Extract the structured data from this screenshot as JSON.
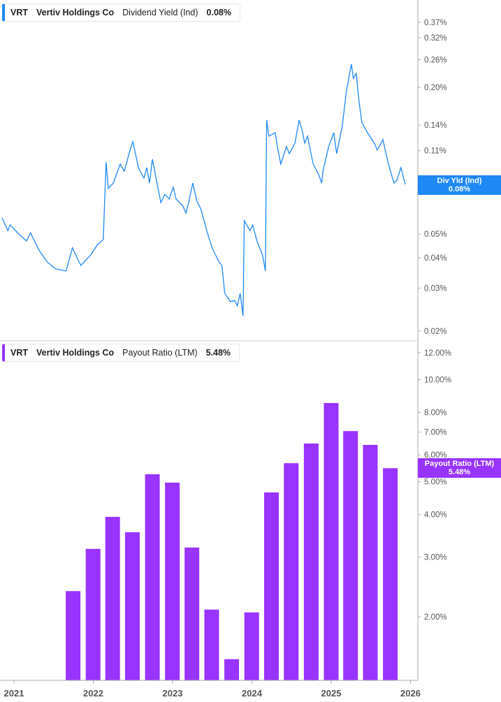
{
  "top_panel": {
    "legend": {
      "ticker": "VRT",
      "company": "Vertiv Holdings Co",
      "metric": "Dividend Yield (Ind)",
      "value": "0.08%"
    },
    "flag": {
      "label": "Div Yld (Ind)",
      "value": "0.08%"
    }
  },
  "bottom_panel": {
    "legend": {
      "ticker": "VRT",
      "company": "Vertiv Holdings Co",
      "metric": "Payout Ratio (LTM)",
      "value": "5.48%"
    },
    "flag": {
      "label": "Payout Ratio (LTM)",
      "value": "5.48%"
    }
  },
  "colors": {
    "line": "#1e88f5",
    "bar": "#9933ff",
    "axis": "#aaaaaa"
  },
  "chart_data": [
    {
      "type": "line",
      "series": [
        {
          "name": "Dividend Yield (Ind)",
          "unit": "%",
          "points": [
            [
              "2020-11-06",
              0.0583
            ],
            [
              "2020-12-03",
              0.0517
            ],
            [
              "2020-12-13",
              0.0545
            ],
            [
              "2021-01-20",
              0.0504
            ],
            [
              "2021-02-28",
              0.0469
            ],
            [
              "2021-03-18",
              0.0507
            ],
            [
              "2021-04-26",
              0.043
            ],
            [
              "2021-06-04",
              0.0384
            ],
            [
              "2021-07-12",
              0.036
            ],
            [
              "2021-08-29",
              0.0353
            ],
            [
              "2021-09-27",
              0.0439
            ],
            [
              "2021-10-23",
              0.0392
            ],
            [
              "2021-11-05",
              0.0372
            ],
            [
              "2021-12-20",
              0.0411
            ],
            [
              "2022-01-21",
              0.0453
            ],
            [
              "2022-02-16",
              0.0475
            ],
            [
              "2022-03-01",
              0.0988
            ],
            [
              "2022-03-11",
              0.0769
            ],
            [
              "2022-04-03",
              0.081
            ],
            [
              "2022-05-05",
              0.0969
            ],
            [
              "2022-05-24",
              0.0907
            ],
            [
              "2022-06-19",
              0.1106
            ],
            [
              "2022-07-02",
              0.1197
            ],
            [
              "2022-07-28",
              0.0937
            ],
            [
              "2022-08-22",
              0.0849
            ],
            [
              "2022-09-04",
              0.0937
            ],
            [
              "2022-09-17",
              0.081
            ],
            [
              "2022-09-30",
              0.1015
            ],
            [
              "2022-10-26",
              0.0769
            ],
            [
              "2022-11-08",
              0.0674
            ],
            [
              "2022-11-27",
              0.0729
            ],
            [
              "2022-12-16",
              0.0697
            ],
            [
              "2023-01-04",
              0.0779
            ],
            [
              "2023-01-17",
              0.0697
            ],
            [
              "2023-02-18",
              0.0652
            ],
            [
              "2023-03-03",
              0.061
            ],
            [
              "2023-03-16",
              0.0674
            ],
            [
              "2023-04-04",
              0.081
            ],
            [
              "2023-04-23",
              0.0683
            ],
            [
              "2023-05-12",
              0.0631
            ],
            [
              "2023-06-07",
              0.0517
            ],
            [
              "2023-07-02",
              0.0439
            ],
            [
              "2023-08-03",
              0.0384
            ],
            [
              "2023-08-16",
              0.0372
            ],
            [
              "2023-08-29",
              0.0286
            ],
            [
              "2023-09-24",
              0.0264
            ],
            [
              "2023-10-13",
              0.0267
            ],
            [
              "2023-10-26",
              0.0254
            ],
            [
              "2023-11-08",
              0.0286
            ],
            [
              "2023-11-21",
              0.0231
            ],
            [
              "2023-11-27",
              0.0568
            ],
            [
              "2023-12-23",
              0.0517
            ],
            [
              "2024-01-05",
              0.0545
            ],
            [
              "2024-01-24",
              0.0469
            ],
            [
              "2024-02-19",
              0.0411
            ],
            [
              "2024-03-03",
              0.0353
            ],
            [
              "2024-03-09",
              0.1468
            ],
            [
              "2024-03-19",
              0.1262
            ],
            [
              "2024-04-17",
              0.1304
            ],
            [
              "2024-04-30",
              0.1106
            ],
            [
              "2024-05-13",
              0.0969
            ],
            [
              "2024-06-08",
              0.1143
            ],
            [
              "2024-06-21",
              0.107
            ],
            [
              "2024-07-17",
              0.1181
            ],
            [
              "2024-08-05",
              0.1468
            ],
            [
              "2024-08-18",
              0.1348
            ],
            [
              "2024-08-31",
              0.1181
            ],
            [
              "2024-09-13",
              0.1262
            ],
            [
              "2024-09-26",
              0.1106
            ],
            [
              "2024-10-09",
              0.0969
            ],
            [
              "2024-11-04",
              0.0877
            ],
            [
              "2024-11-17",
              0.081
            ],
            [
              "2024-11-23",
              0.0907
            ],
            [
              "2024-12-19",
              0.1143
            ],
            [
              "2025-01-13",
              0.1304
            ],
            [
              "2025-01-26",
              0.107
            ],
            [
              "2025-02-21",
              0.1393
            ],
            [
              "2025-03-12",
              0.1937
            ],
            [
              "2025-04-04",
              0.2489
            ],
            [
              "2025-04-13",
              0.2181
            ],
            [
              "2025-04-26",
              0.2285
            ],
            [
              "2025-05-09",
              0.1755
            ],
            [
              "2025-05-22",
              0.1439
            ],
            [
              "2025-06-17",
              0.1304
            ],
            [
              "2025-07-19",
              0.1181
            ],
            [
              "2025-08-01",
              0.1106
            ],
            [
              "2025-08-27",
              0.1221
            ],
            [
              "2025-09-21",
              0.0969
            ],
            [
              "2025-10-17",
              0.081
            ],
            [
              "2025-10-30",
              0.0832
            ],
            [
              "2025-11-18",
              0.0937
            ],
            [
              "2025-12-08",
              0.08
            ]
          ]
        }
      ],
      "y_scale": "log",
      "ylim": [
        0.02,
        0.37
      ],
      "y_ticks": [
        "0.37%",
        "0.32%",
        "0.26%",
        "0.20%",
        "0.14%",
        "0.11%",
        "0.05%",
        "0.04%",
        "0.03%",
        "0.02%"
      ],
      "y_tick_values": [
        0.37,
        0.32,
        0.26,
        0.2,
        0.14,
        0.11,
        0.05,
        0.04,
        0.03,
        0.02
      ],
      "grid": false
    },
    {
      "type": "bar",
      "series": [
        {
          "name": "Payout Ratio (LTM)",
          "unit": "%",
          "points": [
            [
              "2021-09-30",
              2.38
            ],
            [
              "2021-12-31",
              3.17
            ],
            [
              "2022-03-31",
              3.94
            ],
            [
              "2022-06-30",
              3.55
            ],
            [
              "2022-09-30",
              5.26
            ],
            [
              "2022-12-31",
              4.97
            ],
            [
              "2023-03-31",
              3.2
            ],
            [
              "2023-06-30",
              2.1
            ],
            [
              "2023-09-30",
              1.5
            ],
            [
              "2023-12-31",
              2.06
            ],
            [
              "2024-03-31",
              4.65
            ],
            [
              "2024-06-30",
              5.67
            ],
            [
              "2024-09-30",
              6.48
            ],
            [
              "2024-12-31",
              8.53
            ],
            [
              "2025-03-31",
              7.05
            ],
            [
              "2025-06-30",
              6.42
            ],
            [
              "2025-09-30",
              5.48
            ]
          ]
        }
      ],
      "y_scale": "log",
      "ylim": [
        1.31,
        12
      ],
      "y_ticks": [
        "12.00%",
        "10.00%",
        "8.00%",
        "7.00%",
        "6.00%",
        "5.00%",
        "4.00%",
        "3.00%",
        "2.00%"
      ],
      "y_tick_values": [
        12,
        10,
        8,
        7,
        6,
        5,
        4,
        3,
        2
      ],
      "x_ticks": [
        "2021",
        "2022",
        "2023",
        "2024",
        "2025",
        "2026"
      ],
      "grid": false
    }
  ]
}
